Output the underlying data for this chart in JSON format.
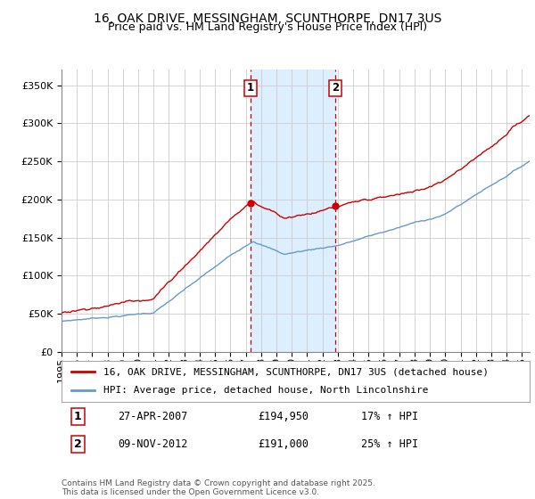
{
  "title": "16, OAK DRIVE, MESSINGHAM, SCUNTHORPE, DN17 3US",
  "subtitle": "Price paid vs. HM Land Registry's House Price Index (HPI)",
  "ylim": [
    0,
    370000
  ],
  "xlim_start": 1995,
  "xlim_end": 2025.5,
  "sale1_date": 2007.32,
  "sale1_price": 194950,
  "sale1_label": "1",
  "sale2_date": 2012.85,
  "sale2_price": 191000,
  "sale2_label": "2",
  "red_line_color": "#cc0000",
  "blue_line_color": "#6699cc",
  "shaded_region_color": "#ddeeff",
  "grid_color": "#cccccc",
  "background_color": "#ffffff",
  "legend_red_label": "16, OAK DRIVE, MESSINGHAM, SCUNTHORPE, DN17 3US (detached house)",
  "legend_blue_label": "HPI: Average price, detached house, North Lincolnshire",
  "footer": "Contains HM Land Registry data © Crown copyright and database right 2025.\nThis data is licensed under the Open Government Licence v3.0.",
  "title_fontsize": 10,
  "subtitle_fontsize": 9,
  "tick_fontsize": 8,
  "legend_fontsize": 8,
  "annotation_fontsize": 8.5
}
